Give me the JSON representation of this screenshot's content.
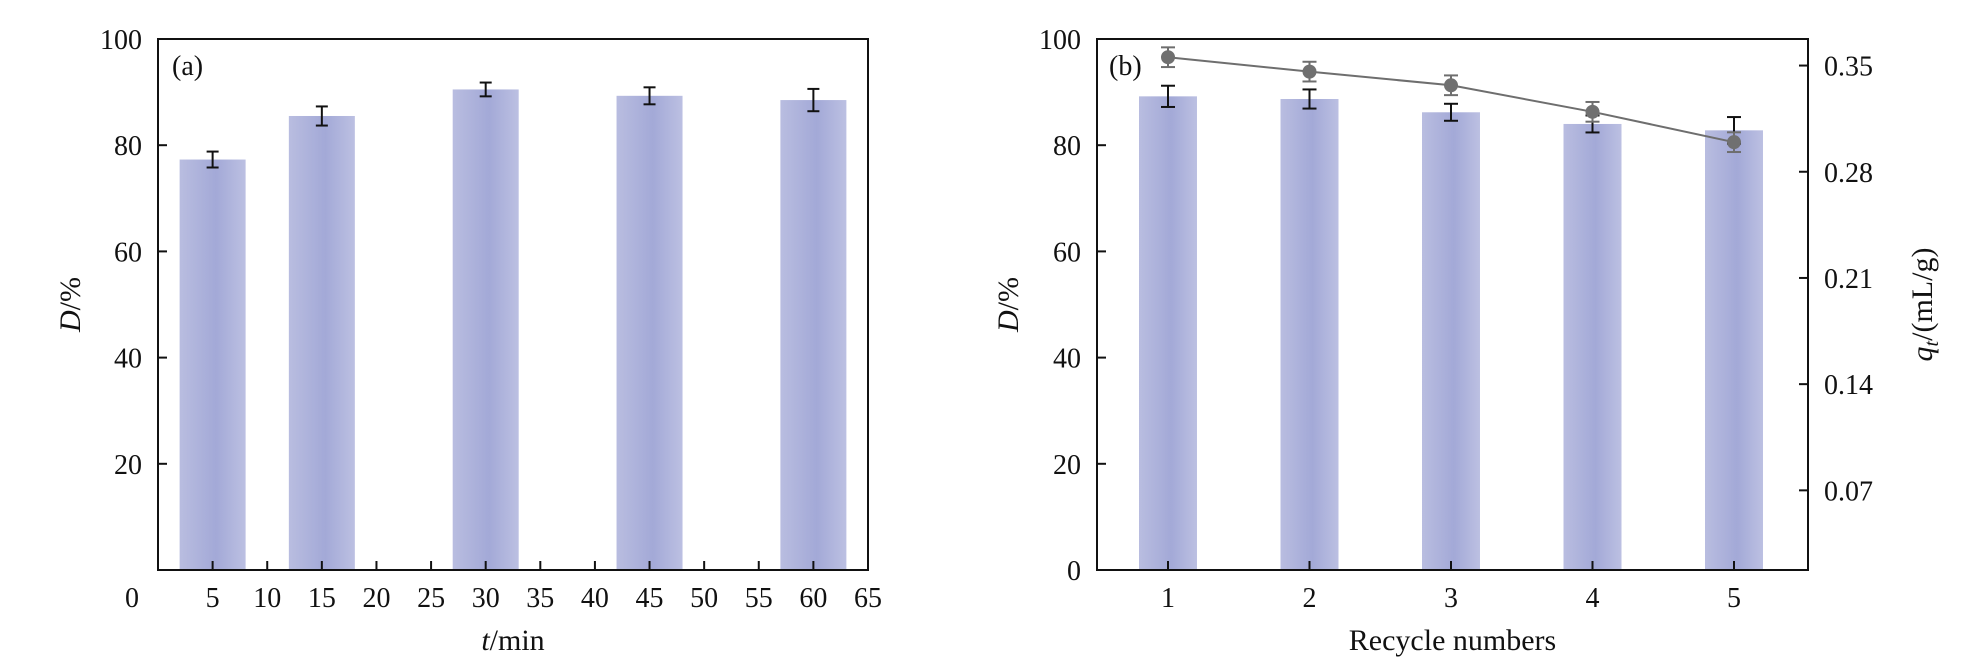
{
  "colors": {
    "bar_left": "#b9bde0",
    "bar_mid": "#a3a9d7",
    "bar_right": "#bcc0e2",
    "axis": "#111111",
    "error_bar": "#111111",
    "line": "#6e6e6e",
    "marker": "#707070"
  },
  "chart_data": [
    {
      "type": "bar",
      "panel_label": "(a)",
      "xlabel_italic": "t",
      "xlabel_rest": "/min",
      "ylabel_italic": "D",
      "ylabel_rest": "/%",
      "xlim": [
        0,
        65
      ],
      "ylim": [
        0,
        100
      ],
      "x_ticks": [
        "0",
        "5",
        "10",
        "15",
        "20",
        "25",
        "30",
        "35",
        "40",
        "45",
        "50",
        "55",
        "60",
        "65"
      ],
      "y_ticks": [
        "20",
        "40",
        "60",
        "80",
        "100"
      ],
      "x": [
        5,
        15,
        30,
        45,
        60
      ],
      "values": [
        77.3,
        85.5,
        90.5,
        89.3,
        88.5
      ],
      "errors": [
        1.5,
        1.8,
        1.3,
        1.6,
        2.1
      ]
    },
    {
      "type": "bar+line",
      "panel_label": "(b)",
      "xlabel": "Recycle numbers",
      "ylabel_italic": "D",
      "ylabel_rest": "/%",
      "y2label_italic": "q",
      "y2label_sub": "t",
      "y2label_rest": "/(mL/g)",
      "ylim": [
        0,
        100
      ],
      "y2lim": [
        0.0175,
        0.3675
      ],
      "categories": [
        "1",
        "2",
        "3",
        "4",
        "5"
      ],
      "y_ticks": [
        "0",
        "20",
        "40",
        "60",
        "80",
        "100"
      ],
      "y2_ticks": [
        "0.07",
        "0.14",
        "0.21",
        "0.28",
        "0.35"
      ],
      "bars": {
        "values": [
          89.2,
          88.7,
          86.2,
          84.0,
          82.8
        ],
        "errors": [
          2.0,
          1.8,
          1.6,
          1.6,
          2.5
        ]
      },
      "line": {
        "values": [
          0.3555,
          0.346,
          0.337,
          0.3195,
          0.2995
        ],
        "errors": [
          0.0065,
          0.0065,
          0.0065,
          0.0065,
          0.0065
        ]
      }
    }
  ]
}
